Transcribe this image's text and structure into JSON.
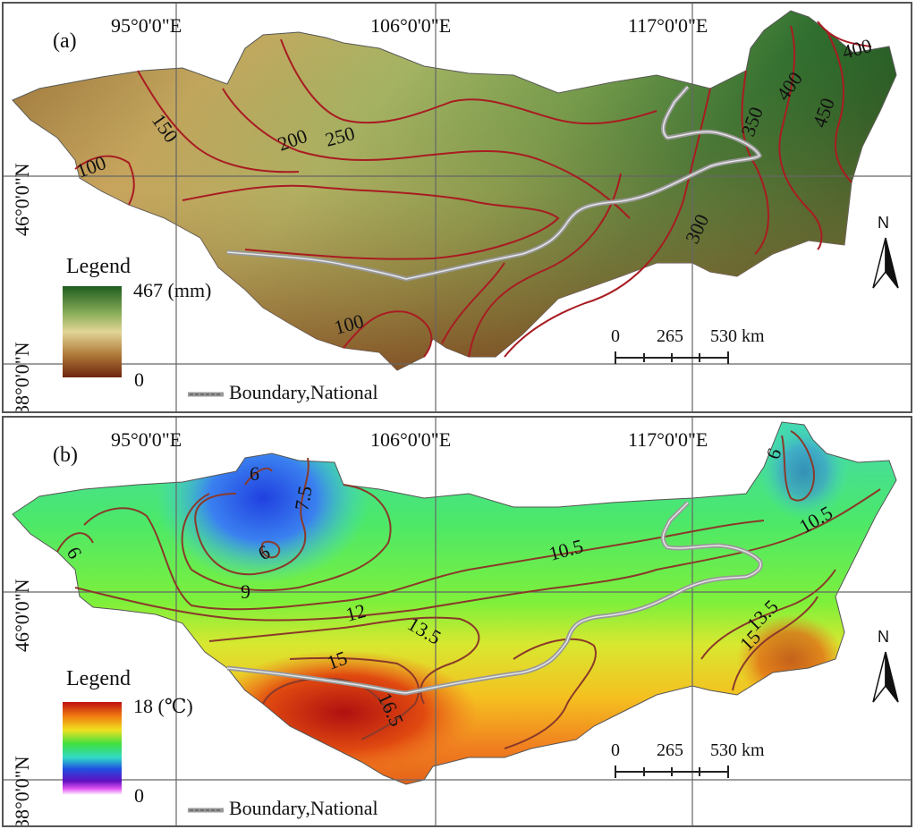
{
  "panels": [
    {
      "label": "(a)",
      "lon_labels": [
        "95°0'0\"E",
        "106°0'0\"E",
        "117°0'0\"E"
      ],
      "lat_labels": [
        "46°0'0\"N",
        "38°0'0\"N"
      ],
      "legend": {
        "title": "Legend",
        "max": "467 (mm)",
        "min": "0",
        "colors": [
          "#2a6b2a",
          "#8fb35a",
          "#e4d89a",
          "#b07a3a",
          "#7a2e12"
        ]
      },
      "contours": [
        "150",
        "100",
        "200",
        "250",
        "350",
        "400",
        "450",
        "400",
        "300",
        "100"
      ],
      "scale": {
        "zero": "0",
        "mid": "265",
        "end": "530 km"
      },
      "boundary_label": "Boundary,National",
      "north": "N"
    },
    {
      "label": "(b)",
      "lon_labels": [
        "95°0'0\"E",
        "106°0'0\"E",
        "117°0'0\"E"
      ],
      "lat_labels": [
        "46°0'0\"N",
        "38°0'0\"N"
      ],
      "legend": {
        "title": "Legend",
        "max": "18 (℃)",
        "min": "0",
        "colors": [
          "#c01010",
          "#f07a10",
          "#f0e020",
          "#40e040",
          "#30d8c8",
          "#2050e0",
          "#6010c0",
          "#ffffff"
        ]
      },
      "contours": [
        "6",
        "7.5",
        "6",
        "6",
        "9",
        "10.5",
        "10.5",
        "12",
        "13.5",
        "15",
        "13.5",
        "15",
        "16.5",
        "6"
      ],
      "scale": {
        "zero": "0",
        "mid": "265",
        "end": "530 km"
      },
      "boundary_label": "Boundary,National",
      "north": "N"
    }
  ]
}
